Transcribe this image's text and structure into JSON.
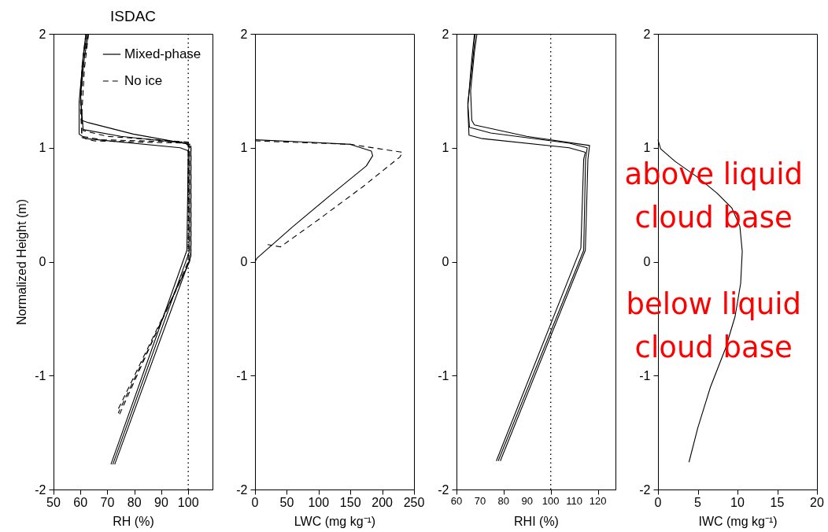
{
  "chart_data": [
    {
      "type": "line",
      "title": "ISDAC",
      "xlabel": "RH (%)",
      "ylabel": "Normalized Height (m)",
      "xlim": [
        50,
        109
      ],
      "xticks": [
        50,
        60,
        70,
        80,
        90,
        100
      ],
      "ylim": [
        -2,
        2
      ],
      "yticks": [
        -2,
        -1,
        0,
        1,
        2
      ],
      "legend": "top right",
      "ref_lines": [
        {
          "axis": "x",
          "value": 100,
          "line_style": "dotted",
          "color": "#000000"
        }
      ],
      "series": [
        {
          "name": "Mixed-phase",
          "color": "#000000",
          "line_style": "solid",
          "x": [
            62,
            61,
            60,
            60.5,
            63,
            79.6,
            100.6,
            100,
            99.5,
            71.3
          ],
          "values": [
            2,
            1.8,
            1.5,
            1.24,
            1.22,
            1.12,
            1.03,
            0.97,
            0.1,
            -1.78
          ]
        },
        {
          "color": "#000000",
          "line_style": "solid",
          "x": [
            62.5,
            61,
            59.5,
            59.5,
            62,
            97,
            100.3,
            100.3,
            72
          ],
          "values": [
            2,
            1.8,
            1.4,
            1.12,
            1.08,
            1.0,
            0.97,
            0.08,
            -1.78
          ]
        },
        {
          "color": "#000000",
          "line_style": "solid",
          "x": [
            63,
            61.5,
            60,
            61,
            75,
            99,
            101,
            101,
            72.7
          ],
          "values": [
            2,
            1.8,
            1.45,
            1.16,
            1.1,
            1.04,
            1.0,
            0.05,
            -1.78
          ]
        },
        {
          "name": "No ice",
          "color": "#000000",
          "line_style": "dashed",
          "x": [
            62,
            60.5,
            60,
            61,
            70,
            100,
            101,
            101,
            100.5,
            73.5
          ],
          "values": [
            2,
            1.7,
            1.4,
            1.15,
            1.1,
            1.05,
            1.02,
            0.1,
            0,
            -1.32
          ]
        },
        {
          "color": "#000000",
          "line_style": "dashed",
          "x": [
            62.5,
            61,
            60,
            60.5,
            68,
            99,
            100.5,
            100.5,
            74
          ],
          "values": [
            2,
            1.7,
            1.35,
            1.1,
            1.07,
            1.05,
            1.0,
            0,
            -1.33
          ]
        },
        {
          "color": "#000000",
          "line_style": "dashed",
          "x": [
            63,
            61.5,
            60.5,
            60.5,
            65,
            100,
            100,
            74.5
          ],
          "values": [
            2,
            1.7,
            1.3,
            1.09,
            1.06,
            1.04,
            0,
            -1.34
          ]
        }
      ]
    },
    {
      "type": "line",
      "xlabel": "LWC (mg kg⁻¹)",
      "xlim": [
        0,
        250
      ],
      "xticks": [
        0,
        50,
        100,
        150,
        200,
        250
      ],
      "ylim": [
        -2,
        2
      ],
      "yticks": [
        -2,
        -1,
        0,
        1,
        2
      ],
      "series": [
        {
          "color": "#000000",
          "line_style": "solid",
          "x": [
            0,
            80,
            150,
            183,
            185,
            175,
            120,
            60,
            3,
            0
          ],
          "values": [
            1.07,
            1.05,
            1.03,
            0.97,
            0.93,
            0.84,
            0.59,
            0.31,
            0.03,
            0
          ]
        },
        {
          "color": "#000000",
          "line_style": "dashed",
          "x": [
            0,
            150,
            232,
            228,
            170,
            100,
            40,
            20
          ],
          "values": [
            1.06,
            1.03,
            0.96,
            0.92,
            0.66,
            0.37,
            0.13,
            0.15
          ]
        }
      ]
    },
    {
      "type": "line",
      "xlabel": "RHI (%)",
      "xlim": [
        60,
        127.5
      ],
      "xticks": [
        60,
        70,
        80,
        90,
        100,
        110,
        120
      ],
      "ylim": [
        -2,
        2
      ],
      "yticks": [
        -2,
        -1,
        0,
        1,
        2
      ],
      "ref_lines": [
        {
          "axis": "x",
          "value": 100,
          "line_style": "dotted",
          "color": "#000000"
        }
      ],
      "series": [
        {
          "color": "#000000",
          "line_style": "solid",
          "x": [
            68.7,
            67.6,
            66,
            66.5,
            67.6,
            89.8,
            116.5,
            115.8,
            114.7,
            78.6
          ],
          "values": [
            2,
            1.84,
            1.5,
            1.24,
            1.2,
            1.1,
            1.02,
            0.9,
            0.1,
            -1.75
          ]
        },
        {
          "color": "#000000",
          "line_style": "solid",
          "x": [
            68,
            67,
            64.8,
            65.5,
            74.5,
            108,
            115.5,
            114.8,
            114,
            77.7
          ],
          "values": [
            2,
            1.79,
            1.39,
            1.18,
            1.13,
            1.04,
            1.0,
            0.9,
            0.1,
            -1.75
          ]
        },
        {
          "color": "#000000",
          "line_style": "solid",
          "x": [
            67.6,
            66.5,
            64.8,
            65.3,
            71,
            107.8,
            114.7,
            114,
            112.8,
            76.9
          ],
          "values": [
            2,
            1.78,
            1.36,
            1.11,
            1.08,
            1.0,
            0.96,
            0.9,
            0.12,
            -1.75
          ]
        }
      ]
    },
    {
      "type": "line",
      "xlabel": "IWC (mg kg⁻¹)",
      "xlim": [
        0,
        20
      ],
      "xticks": [
        0,
        5,
        10,
        15,
        20
      ],
      "ylim": [
        -2,
        2
      ],
      "yticks": [
        -2,
        -1,
        0,
        1,
        2
      ],
      "annotations": [
        "above liquid cloud base",
        "below liquid cloud base"
      ],
      "series": [
        {
          "color": "#000000",
          "line_style": "solid",
          "x": [
            0,
            0.33,
            2.16,
            5,
            7.45,
            9.3,
            10.3,
            10.6,
            10.4,
            9.7,
            8.5,
            6.6,
            5,
            3.9
          ],
          "values": [
            1.07,
            0.99,
            0.88,
            0.74,
            0.6,
            0.47,
            0.31,
            0.09,
            -0.19,
            -0.48,
            -0.76,
            -1.1,
            -1.46,
            -1.76
          ]
        }
      ]
    }
  ]
}
